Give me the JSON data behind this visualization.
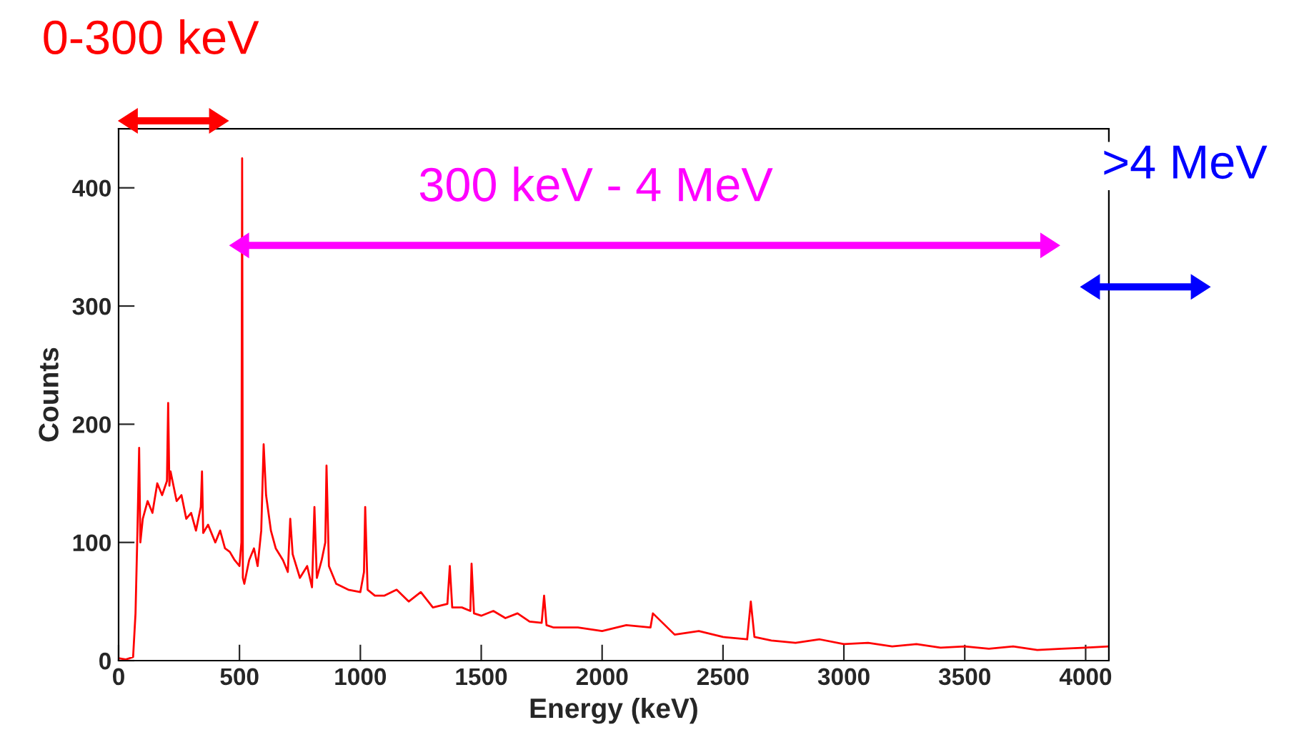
{
  "chart_data": {
    "type": "line",
    "xlabel": "Energy (keV)",
    "ylabel": "Counts",
    "color": "#ff0000",
    "xlim": [
      0,
      4096
    ],
    "xticks": [
      0,
      500,
      1000,
      1500,
      2000,
      2500,
      3000,
      3500,
      4000
    ],
    "ylim": [
      0,
      450
    ],
    "yticks": [
      0,
      100,
      200,
      300,
      400
    ],
    "grid": false,
    "annotations": [
      "0-300 keV",
      "300 keV - 4 MeV",
      ">4 MeV"
    ],
    "x": [
      0,
      30,
      60,
      70,
      78,
      85,
      90,
      100,
      120,
      140,
      160,
      180,
      200,
      205,
      210,
      215,
      230,
      240,
      260,
      280,
      300,
      320,
      340,
      345,
      350,
      370,
      400,
      420,
      440,
      460,
      480,
      500,
      508,
      511,
      514,
      520,
      540,
      560,
      575,
      590,
      600,
      610,
      630,
      650,
      680,
      700,
      710,
      720,
      750,
      780,
      800,
      810,
      820,
      840,
      855,
      860,
      870,
      900,
      950,
      1000,
      1015,
      1020,
      1030,
      1060,
      1100,
      1150,
      1200,
      1250,
      1300,
      1360,
      1370,
      1380,
      1420,
      1455,
      1460,
      1470,
      1500,
      1550,
      1600,
      1650,
      1700,
      1750,
      1760,
      1770,
      1800,
      1900,
      2000,
      2100,
      2200,
      2210,
      2300,
      2400,
      2500,
      2600,
      2615,
      2630,
      2700,
      2800,
      2900,
      3000,
      3100,
      3200,
      3300,
      3400,
      3500,
      3600,
      3700,
      3800,
      3900,
      4000,
      4096
    ],
    "values": [
      2,
      1,
      3,
      40,
      110,
      180,
      100,
      120,
      135,
      125,
      150,
      140,
      152,
      218,
      148,
      160,
      145,
      135,
      140,
      120,
      125,
      110,
      130,
      160,
      108,
      115,
      100,
      110,
      95,
      92,
      85,
      80,
      100,
      425,
      70,
      65,
      85,
      95,
      80,
      110,
      183,
      140,
      110,
      95,
      85,
      75,
      120,
      90,
      70,
      80,
      62,
      130,
      70,
      85,
      100,
      165,
      80,
      65,
      60,
      58,
      75,
      130,
      60,
      55,
      55,
      60,
      50,
      58,
      45,
      48,
      80,
      45,
      45,
      42,
      82,
      40,
      38,
      42,
      36,
      40,
      33,
      32,
      55,
      30,
      28,
      28,
      25,
      30,
      28,
      40,
      22,
      25,
      20,
      18,
      50,
      20,
      17,
      15,
      18,
      14,
      15,
      12,
      14,
      11,
      12,
      10,
      12,
      9,
      10,
      11,
      12
    ]
  }
}
